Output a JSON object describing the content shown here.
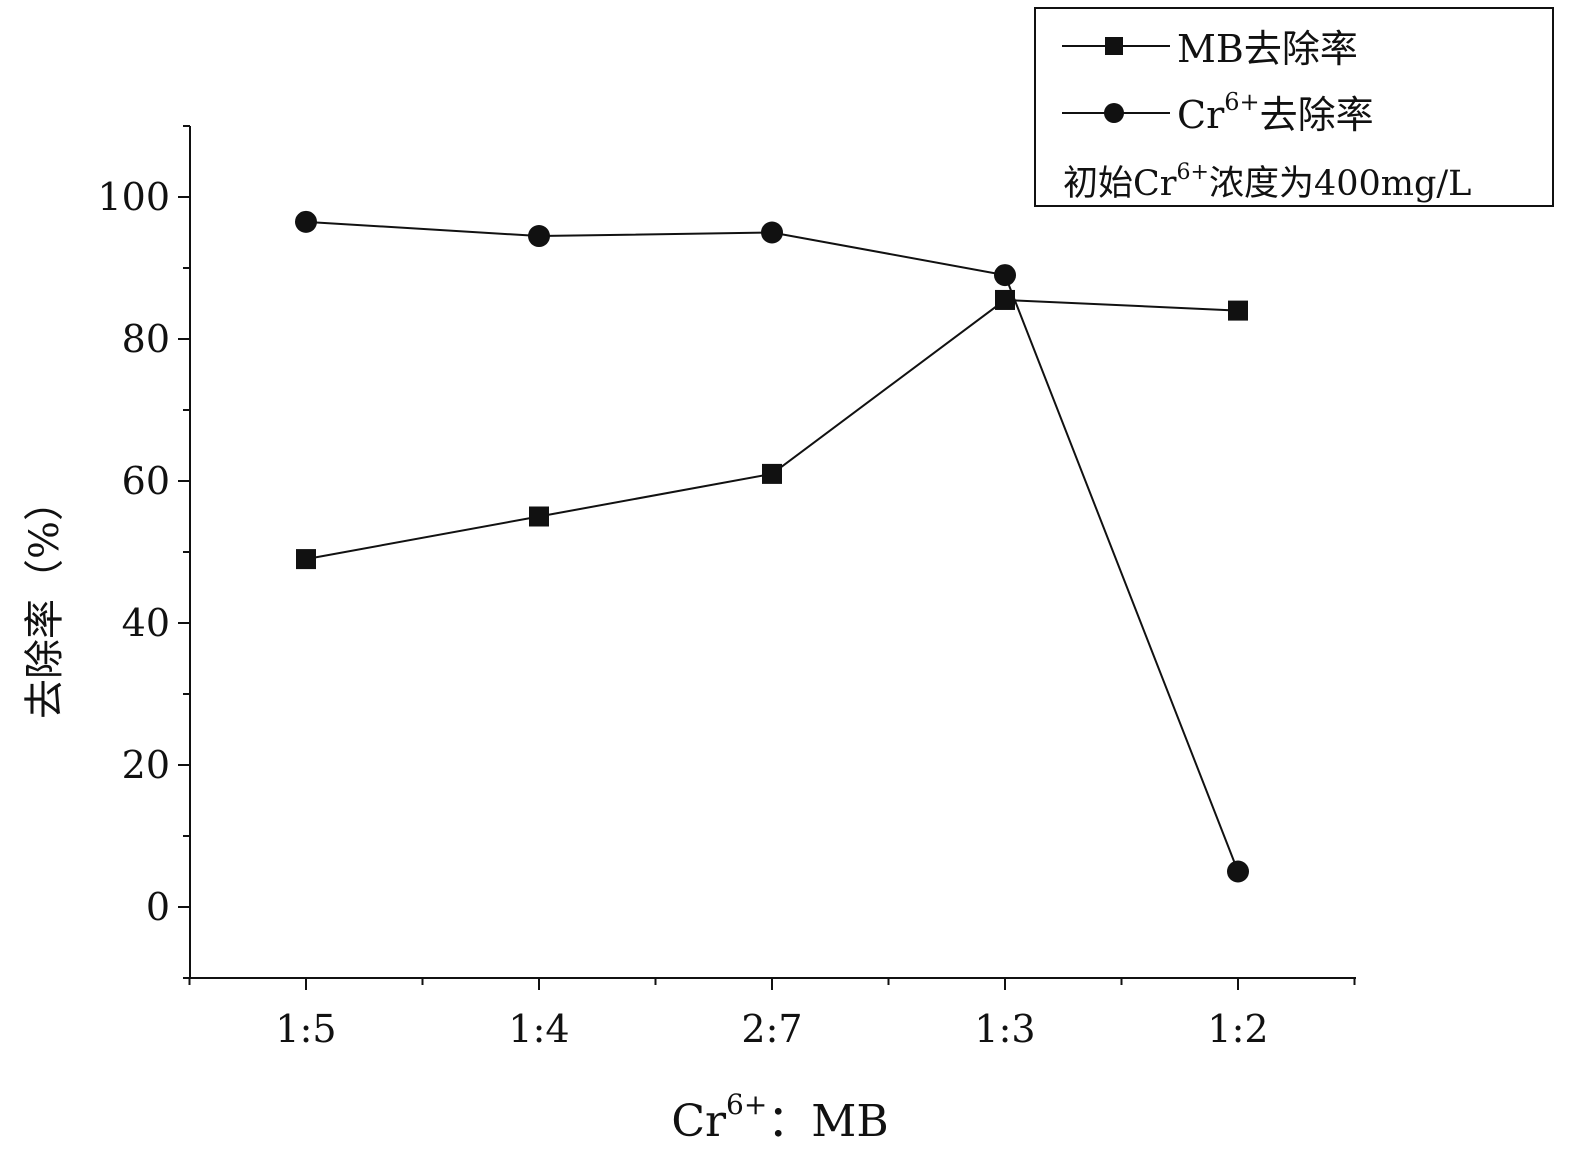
{
  "chart_data": {
    "type": "line",
    "categories": [
      "1:5",
      "1:4",
      "2:7",
      "1:3",
      "1:2"
    ],
    "series": [
      {
        "name": "MB去除率",
        "marker": "square",
        "values": [
          49,
          55,
          61,
          85.5,
          84
        ]
      },
      {
        "name": "Cr6+去除率",
        "marker": "circle",
        "values": [
          96.5,
          94.5,
          95,
          89,
          5
        ]
      }
    ],
    "ylabel": "去除率（%）",
    "xlabel_parts": {
      "base": "Cr",
      "sup": "6+",
      "rest": "：MB"
    },
    "ylim": [
      -10,
      110
    ],
    "yticks": [
      0,
      20,
      40,
      60,
      80,
      100
    ],
    "legend": {
      "position": "top-right",
      "entries": [
        {
          "base": "MB",
          "sup": "",
          "rest": "去除率"
        },
        {
          "base": "Cr",
          "sup": "6+",
          "rest": "去除率"
        }
      ],
      "note": {
        "base": "初始Cr",
        "sup": "6+",
        "rest": "浓度为400mg/L"
      }
    },
    "colors": {
      "line": "#111111",
      "marker": "#111111",
      "axis": "#111111"
    },
    "grid": false
  }
}
